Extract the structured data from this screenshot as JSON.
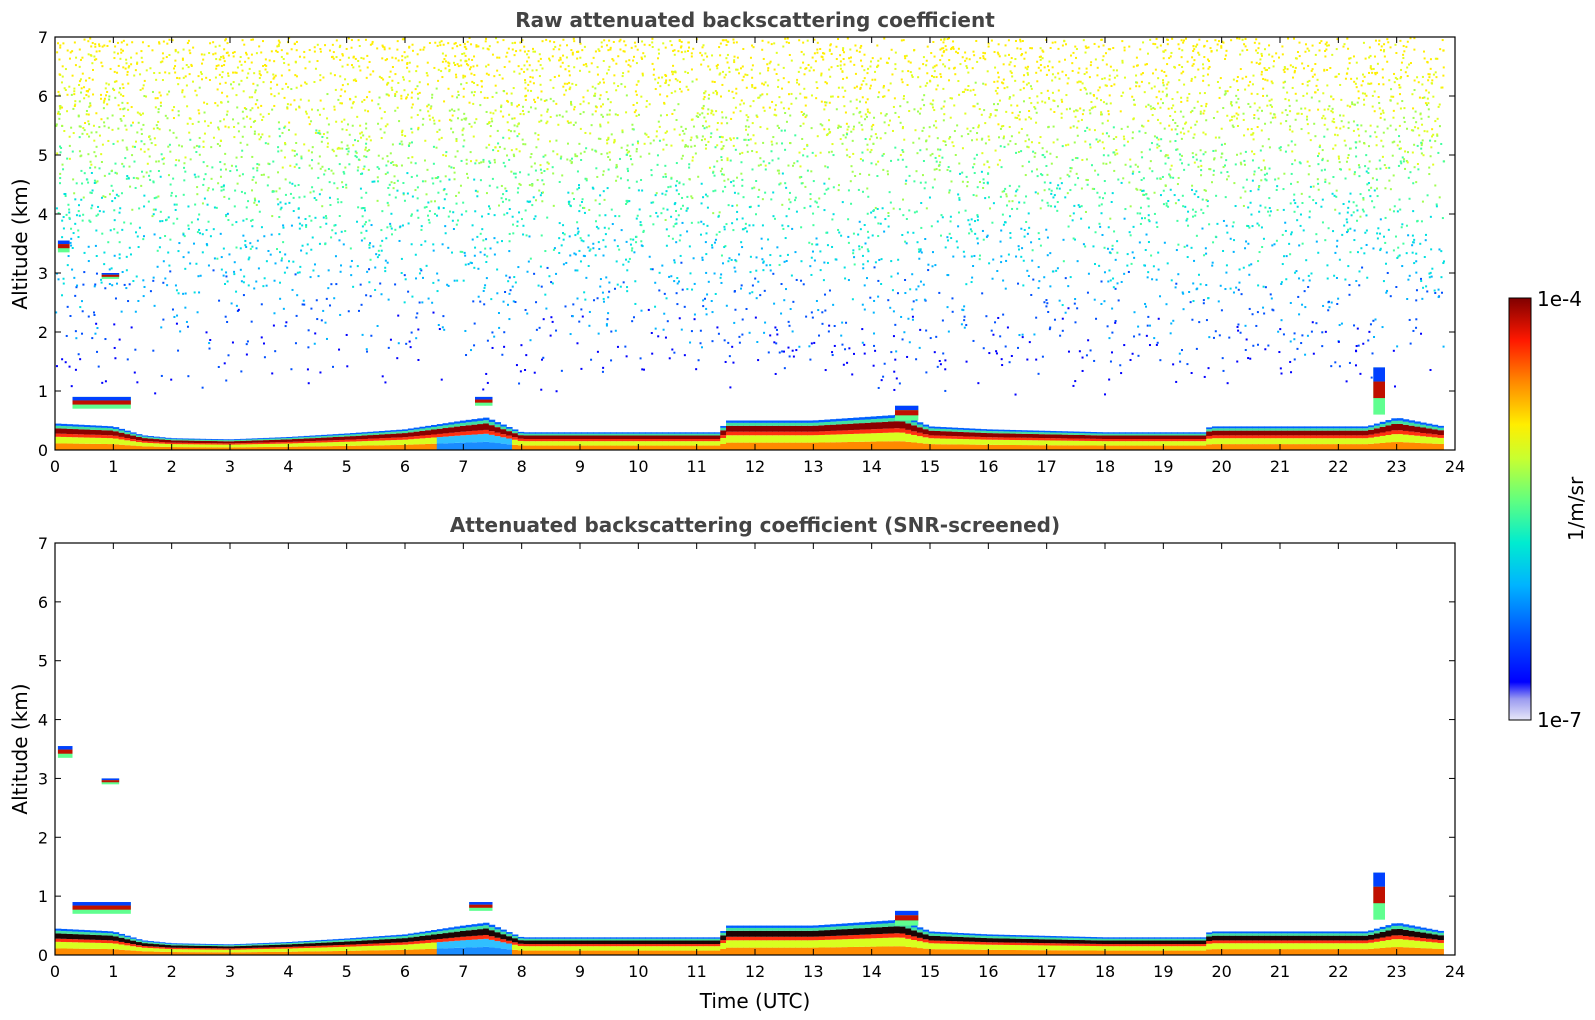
{
  "chart_data": [
    {
      "type": "heatmap",
      "title": "Raw attenuated backscattering coefficient",
      "xlabel": "",
      "ylabel": "Altitude (km)",
      "xlim": [
        0,
        24
      ],
      "ylim": [
        0,
        7
      ],
      "xticks": [
        "0",
        "1",
        "2",
        "3",
        "4",
        "5",
        "6",
        "7",
        "8",
        "9",
        "10",
        "11",
        "12",
        "13",
        "14",
        "15",
        "16",
        "17",
        "18",
        "19",
        "20",
        "21",
        "22",
        "23",
        "24"
      ],
      "yticks": [
        "0",
        "1",
        "2",
        "3",
        "4",
        "5",
        "6",
        "7"
      ],
      "noise": "scattered noise above 1 km, increasing in density with altitude",
      "boundary_layer_top_km": [
        [
          0,
          0.45
        ],
        [
          1,
          0.4
        ],
        [
          1.5,
          0.25
        ],
        [
          2,
          0.2
        ],
        [
          3,
          0.18
        ],
        [
          4,
          0.22
        ],
        [
          5,
          0.28
        ],
        [
          6,
          0.35
        ],
        [
          7,
          0.5
        ],
        [
          7.4,
          0.55
        ],
        [
          8,
          0.3
        ],
        [
          10,
          0.3
        ],
        [
          11.4,
          0.3
        ],
        [
          11.5,
          0.5
        ],
        [
          13,
          0.5
        ],
        [
          14.5,
          0.6
        ],
        [
          15,
          0.4
        ],
        [
          16,
          0.35
        ],
        [
          18,
          0.3
        ],
        [
          19.7,
          0.3
        ],
        [
          19.8,
          0.4
        ],
        [
          22.5,
          0.4
        ],
        [
          23,
          0.55
        ],
        [
          23.8,
          0.4
        ]
      ],
      "elevated_layers": [
        {
          "t": [
            0.3,
            1.3
          ],
          "alt_km": [
            0.7,
            0.9
          ]
        },
        {
          "t": [
            0.05,
            0.25
          ],
          "alt_km": [
            3.35,
            3.55
          ]
        },
        {
          "t": [
            0.8,
            1.1
          ],
          "alt_km": [
            2.9,
            3.0
          ]
        },
        {
          "t": [
            7.2,
            7.5
          ],
          "alt_km": [
            0.75,
            0.9
          ]
        },
        {
          "t": [
            14.4,
            14.8
          ],
          "alt_km": [
            0.5,
            0.75
          ]
        },
        {
          "t": [
            22.6,
            22.8
          ],
          "alt_km": [
            0.6,
            1.4
          ]
        }
      ]
    },
    {
      "type": "heatmap",
      "title": "Attenuated backscattering coefficient (SNR-screened)",
      "xlabel": "Time (UTC)",
      "ylabel": "Altitude (km)",
      "xlim": [
        0,
        24
      ],
      "ylim": [
        0,
        7
      ],
      "xticks": [
        "0",
        "1",
        "2",
        "3",
        "4",
        "5",
        "6",
        "7",
        "8",
        "9",
        "10",
        "11",
        "12",
        "13",
        "14",
        "15",
        "16",
        "17",
        "18",
        "19",
        "20",
        "21",
        "22",
        "23",
        "24"
      ],
      "yticks": [
        "0",
        "1",
        "2",
        "3",
        "4",
        "5",
        "6",
        "7"
      ],
      "noise": "screened out (blank above the layers)",
      "boundary_layer_top_km": [
        [
          0,
          0.45
        ],
        [
          1,
          0.4
        ],
        [
          1.5,
          0.25
        ],
        [
          2,
          0.2
        ],
        [
          3,
          0.18
        ],
        [
          4,
          0.22
        ],
        [
          5,
          0.28
        ],
        [
          6,
          0.35
        ],
        [
          7,
          0.5
        ],
        [
          7.4,
          0.55
        ],
        [
          8,
          0.3
        ],
        [
          10,
          0.3
        ],
        [
          11.4,
          0.3
        ],
        [
          11.5,
          0.5
        ],
        [
          13,
          0.5
        ],
        [
          14.5,
          0.6
        ],
        [
          15,
          0.4
        ],
        [
          16,
          0.35
        ],
        [
          18,
          0.3
        ],
        [
          19.7,
          0.3
        ],
        [
          19.8,
          0.4
        ],
        [
          22.5,
          0.4
        ],
        [
          23,
          0.55
        ],
        [
          23.8,
          0.4
        ]
      ],
      "elevated_layers": [
        {
          "t": [
            0.3,
            1.3
          ],
          "alt_km": [
            0.7,
            0.9
          ]
        },
        {
          "t": [
            0.05,
            0.3
          ],
          "alt_km": [
            3.35,
            3.55
          ]
        },
        {
          "t": [
            0.8,
            1.1
          ],
          "alt_km": [
            2.9,
            3.0
          ]
        },
        {
          "t": [
            7.1,
            7.5
          ],
          "alt_km": [
            0.75,
            0.9
          ]
        },
        {
          "t": [
            14.4,
            14.8
          ],
          "alt_km": [
            0.5,
            0.75
          ]
        },
        {
          "t": [
            22.6,
            22.8
          ],
          "alt_km": [
            0.6,
            1.4
          ]
        }
      ]
    }
  ],
  "colorbar": {
    "label": "1/m/sr",
    "max_label": "1e-4",
    "min_label": "1e-7",
    "scale": "log",
    "colormap": "jet",
    "colors": [
      "#e6e6f8",
      "#0000ff",
      "#00c8ff",
      "#7fff7f",
      "#ffff00",
      "#ff7f00",
      "#ff0000",
      "#7f0000"
    ]
  }
}
